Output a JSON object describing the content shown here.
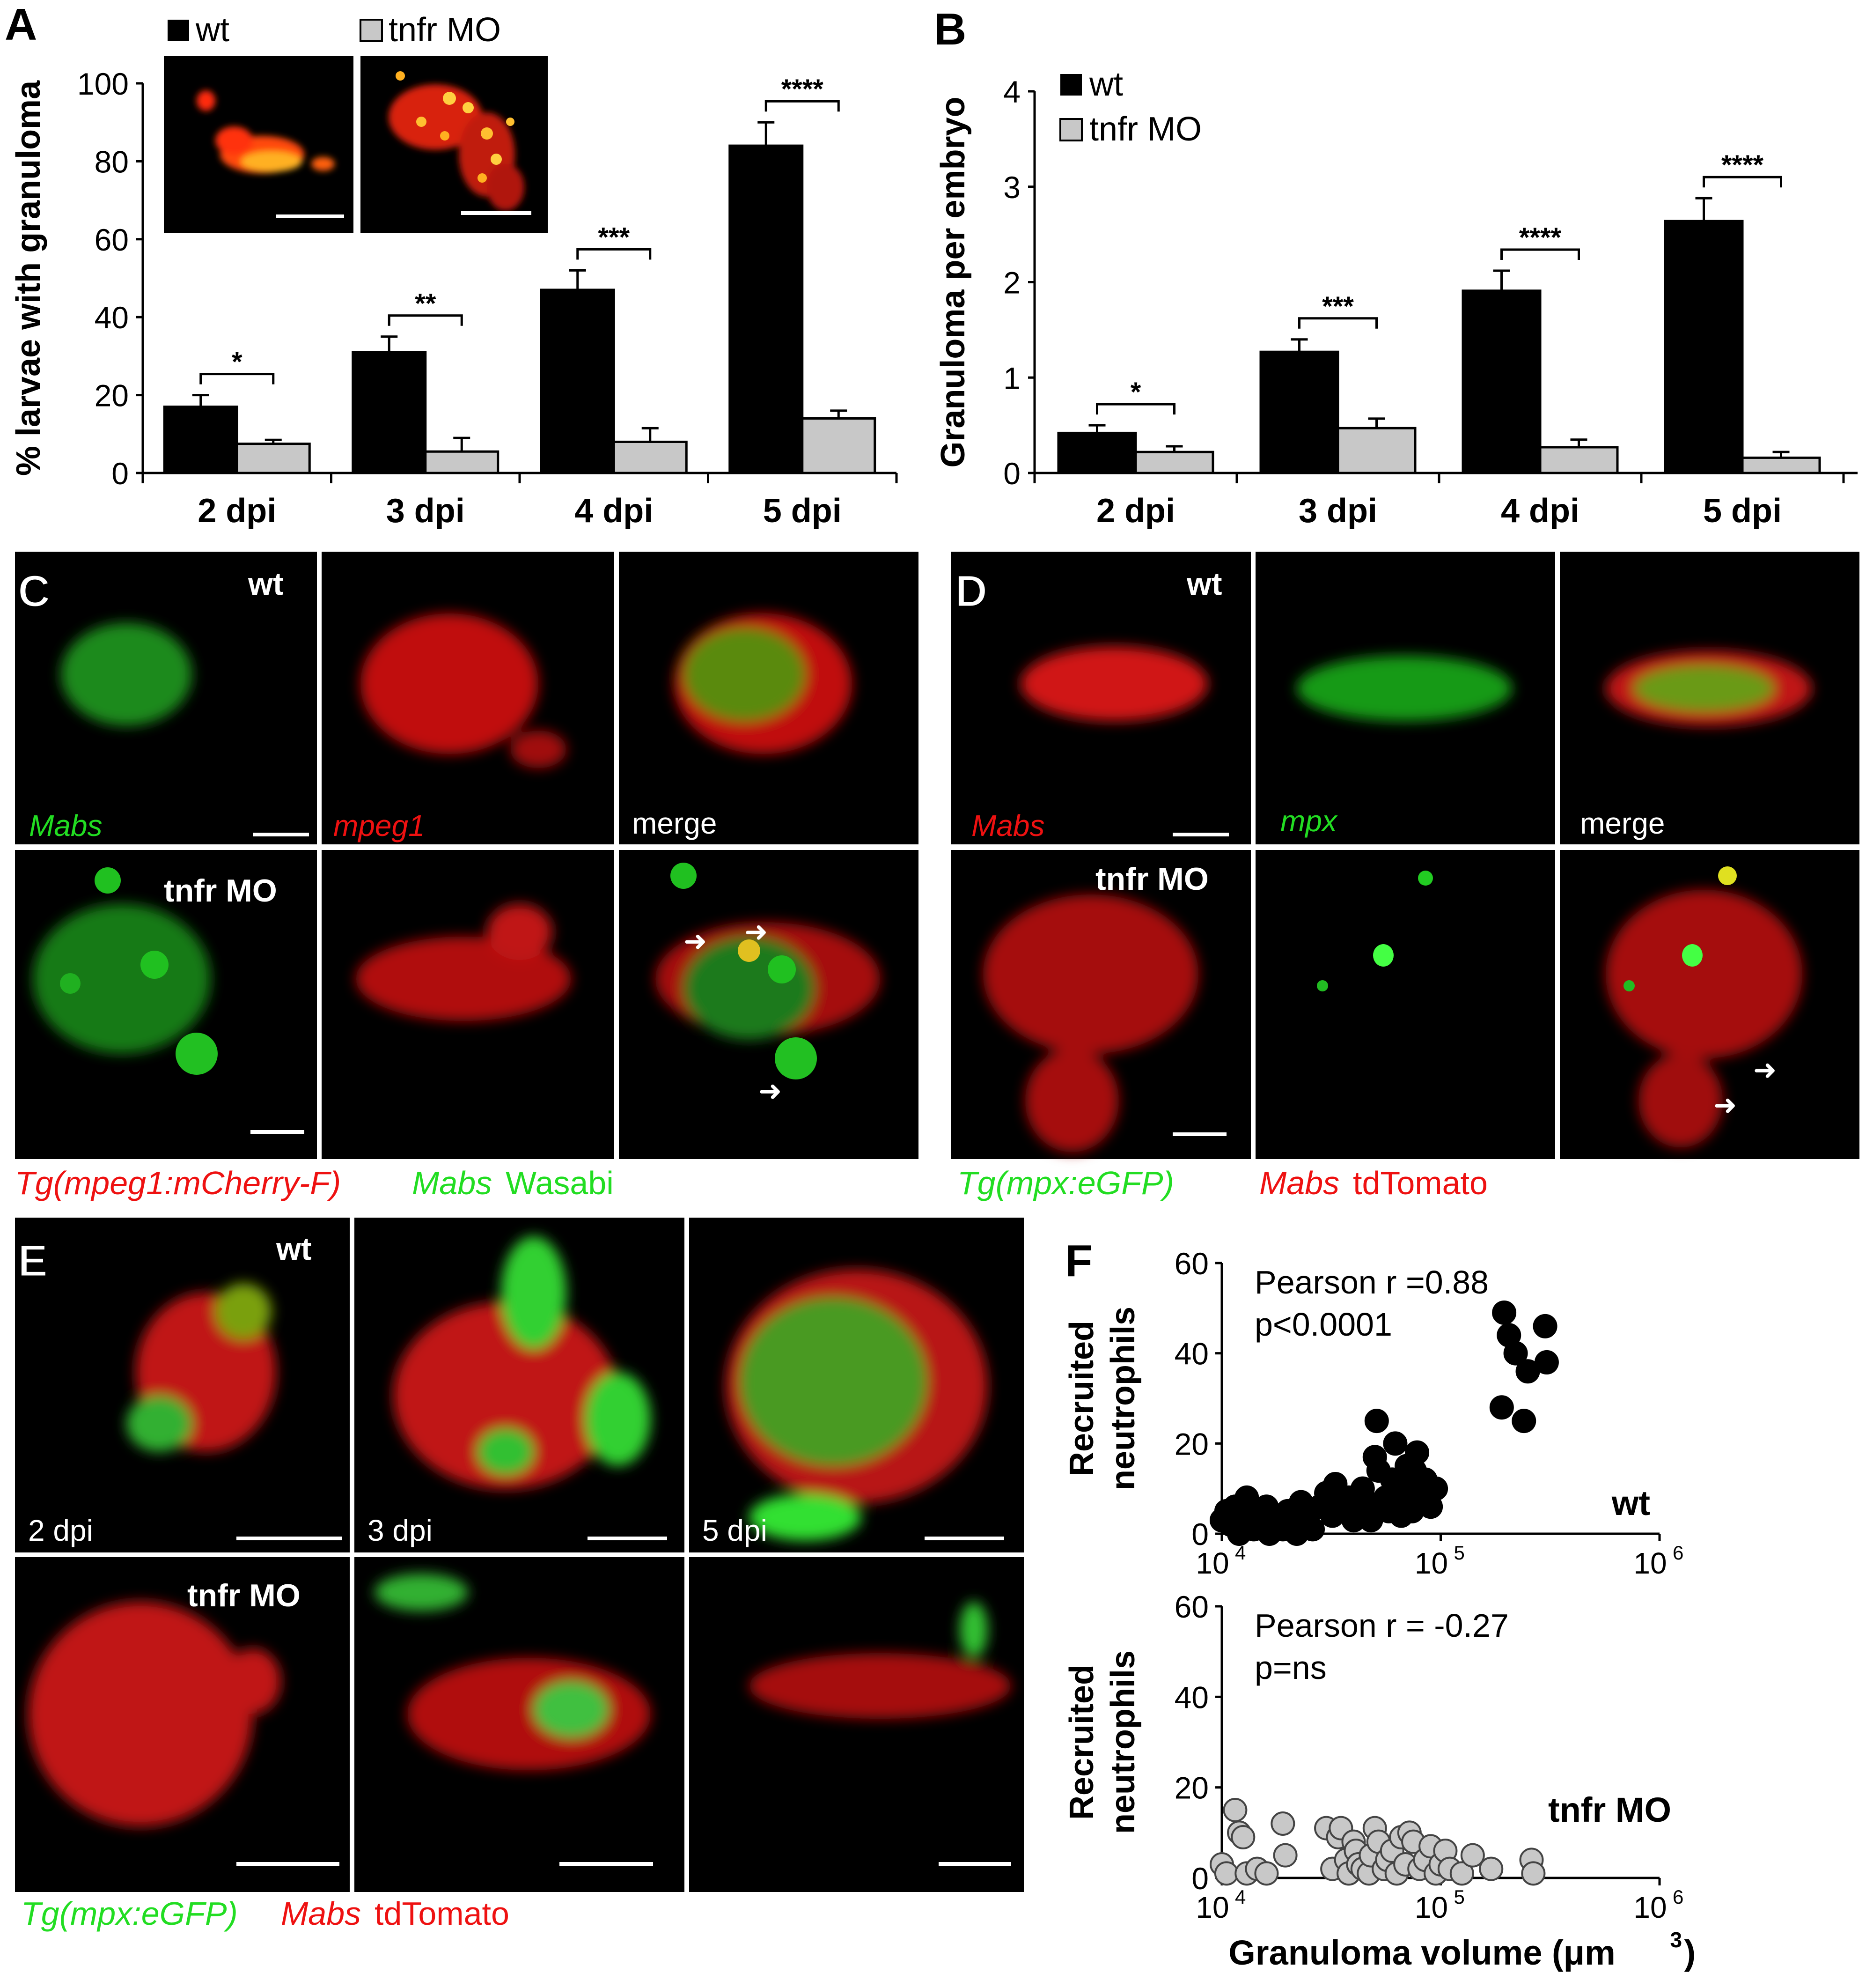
{
  "panels": {
    "A": "A",
    "B": "B",
    "C": "C",
    "D": "D",
    "E": "E",
    "F": "F"
  },
  "legend": {
    "wt": "wt",
    "tnfr": "tnfr MO"
  },
  "colors": {
    "wt": "#000000",
    "tnfr": "#c8c8c8",
    "green": "#22dd22",
    "red": "#ee1111"
  },
  "chart_data": [
    {
      "panel": "A",
      "type": "bar",
      "ylabel": "% larvae with granuloma",
      "xlabel": "",
      "ylim": [
        0,
        100
      ],
      "yticks": [
        "0",
        "20",
        "40",
        "60",
        "80",
        "100"
      ],
      "categories": [
        "2 dpi",
        "3 dpi",
        "4 dpi",
        "5 dpi"
      ],
      "series": [
        {
          "name": "wt",
          "values": [
            17,
            31,
            47,
            84
          ],
          "errors": [
            3,
            4,
            5,
            6
          ]
        },
        {
          "name": "tnfr MO",
          "values": [
            7.5,
            5.5,
            8,
            14
          ],
          "errors": [
            1,
            3.5,
            3.5,
            2
          ]
        }
      ],
      "significance": [
        "*",
        "**",
        "***",
        "****"
      ]
    },
    {
      "panel": "B",
      "type": "bar",
      "ylabel": "Granuloma per embryo",
      "xlabel": "",
      "ylim": [
        0,
        4
      ],
      "yticks": [
        "0",
        "1",
        "2",
        "3",
        "4"
      ],
      "categories": [
        "2 dpi",
        "3 dpi",
        "4 dpi",
        "5 dpi"
      ],
      "series": [
        {
          "name": "wt",
          "values": [
            0.42,
            1.27,
            1.91,
            2.64
          ],
          "errors": [
            0.08,
            0.13,
            0.21,
            0.24
          ]
        },
        {
          "name": "tnfr MO",
          "values": [
            0.22,
            0.47,
            0.27,
            0.16
          ],
          "errors": [
            0.06,
            0.1,
            0.08,
            0.06
          ]
        }
      ],
      "significance": [
        "*",
        "***",
        "****",
        "****"
      ]
    },
    {
      "panel": "F-top",
      "type": "scatter",
      "xscale": "log",
      "xlim": [
        10000,
        1000000
      ],
      "ylim": [
        0,
        60
      ],
      "yticks": [
        "0",
        "20",
        "40",
        "60"
      ],
      "xticks": [
        "10",
        "10",
        "10"
      ],
      "xtick_exp": [
        "4",
        "5",
        "6"
      ],
      "ylabel": "Recruited neutrophils",
      "group_label": "wt",
      "stat1": "Pearson r =0.88",
      "stat2": "p<0.0001",
      "points": [
        [
          10000,
          3
        ],
        [
          10500,
          5
        ],
        [
          11000,
          2
        ],
        [
          11500,
          6
        ],
        [
          12000,
          0
        ],
        [
          12500,
          4
        ],
        [
          13000,
          8
        ],
        [
          13500,
          3
        ],
        [
          14000,
          1
        ],
        [
          14500,
          5
        ],
        [
          15000,
          2
        ],
        [
          16000,
          6
        ],
        [
          16500,
          0
        ],
        [
          17000,
          3
        ],
        [
          18000,
          4
        ],
        [
          19000,
          1
        ],
        [
          20000,
          5
        ],
        [
          21000,
          2
        ],
        [
          22000,
          0
        ],
        [
          23000,
          7
        ],
        [
          24000,
          3
        ],
        [
          26000,
          1
        ],
        [
          28000,
          6
        ],
        [
          30000,
          9
        ],
        [
          32000,
          4
        ],
        [
          33000,
          11
        ],
        [
          36000,
          6
        ],
        [
          38000,
          8
        ],
        [
          40000,
          3
        ],
        [
          42000,
          5
        ],
        [
          44000,
          10
        ],
        [
          46000,
          7
        ],
        [
          48000,
          3
        ],
        [
          50000,
          17
        ],
        [
          51000,
          25
        ],
        [
          52000,
          14
        ],
        [
          54000,
          6
        ],
        [
          56000,
          8
        ],
        [
          58000,
          5
        ],
        [
          60000,
          12
        ],
        [
          62000,
          20
        ],
        [
          64000,
          9
        ],
        [
          66000,
          4
        ],
        [
          68000,
          11
        ],
        [
          70000,
          15
        ],
        [
          72000,
          7
        ],
        [
          74000,
          5
        ],
        [
          76000,
          14
        ],
        [
          78000,
          18
        ],
        [
          80000,
          10
        ],
        [
          85000,
          12
        ],
        [
          90000,
          6
        ],
        [
          95000,
          10
        ],
        [
          190000,
          28
        ],
        [
          195000,
          49
        ],
        [
          205000,
          44
        ],
        [
          220000,
          40
        ],
        [
          240000,
          25
        ],
        [
          250000,
          36
        ],
        [
          300000,
          46
        ],
        [
          305000,
          38
        ]
      ]
    },
    {
      "panel": "F-bottom",
      "type": "scatter",
      "xscale": "log",
      "xlim": [
        10000,
        1000000
      ],
      "ylim": [
        0,
        60
      ],
      "yticks": [
        "0",
        "20",
        "40",
        "60"
      ],
      "xticks": [
        "10",
        "10",
        "10"
      ],
      "xtick_exp": [
        "4",
        "5",
        "6"
      ],
      "ylabel": "Recruited neutrophils",
      "xlabel": "Granuloma volume (μm",
      "xlabel_exp": "3",
      "xlabel_end": ")",
      "group_label": "tnfr MO",
      "stat1": "Pearson r = -0.27",
      "stat2": "p=ns",
      "points": [
        [
          10000,
          3
        ],
        [
          10500,
          1
        ],
        [
          11500,
          15
        ],
        [
          12000,
          10
        ],
        [
          12500,
          9
        ],
        [
          13000,
          1
        ],
        [
          14500,
          2
        ],
        [
          16000,
          1
        ],
        [
          19000,
          12
        ],
        [
          19500,
          5
        ],
        [
          30000,
          11
        ],
        [
          32000,
          2
        ],
        [
          34000,
          9
        ],
        [
          35000,
          11
        ],
        [
          37000,
          4
        ],
        [
          38000,
          1
        ],
        [
          40000,
          8
        ],
        [
          41000,
          6
        ],
        [
          42000,
          3
        ],
        [
          44000,
          2
        ],
        [
          47000,
          1
        ],
        [
          48000,
          5
        ],
        [
          50000,
          11
        ],
        [
          52000,
          8
        ],
        [
          55000,
          2
        ],
        [
          57000,
          4
        ],
        [
          60000,
          6
        ],
        [
          63000,
          1
        ],
        [
          66000,
          9
        ],
        [
          69000,
          3
        ],
        [
          72000,
          10
        ],
        [
          75000,
          8
        ],
        [
          80000,
          2
        ],
        [
          85000,
          4
        ],
        [
          90000,
          7
        ],
        [
          95000,
          1
        ],
        [
          100000,
          3
        ],
        [
          105000,
          6
        ],
        [
          110000,
          2
        ],
        [
          125000,
          1
        ],
        [
          140000,
          5
        ],
        [
          170000,
          2
        ],
        [
          260000,
          4
        ],
        [
          265000,
          1
        ]
      ]
    }
  ],
  "micro": {
    "C_wt": "wt",
    "C_tnfr": "tnfr MO",
    "C_lbl1": "Mabs",
    "C_lbl2": "mpeg1",
    "C_lbl3": "merge",
    "C_cap1": "Tg(mpeg1:mCherry-F)",
    "C_cap2a": "Mabs",
    "C_cap2b": "Wasabi",
    "D_wt": "wt",
    "D_tnfr": "tnfr MO",
    "D_lbl1": "Mabs",
    "D_lbl2": "mpx",
    "D_lbl3": "merge",
    "D_cap1": "Tg(mpx:eGFP)",
    "D_cap2a": "Mabs",
    "D_cap2b": "tdTomato",
    "E_wt": "wt",
    "E_tnfr": "tnfr MO",
    "E_d2": "2 dpi",
    "E_d3": "3 dpi",
    "E_d5": "5 dpi",
    "E_cap1": "Tg(mpx:eGFP)",
    "E_cap2a": "Mabs",
    "E_cap2b": "tdTomato"
  }
}
